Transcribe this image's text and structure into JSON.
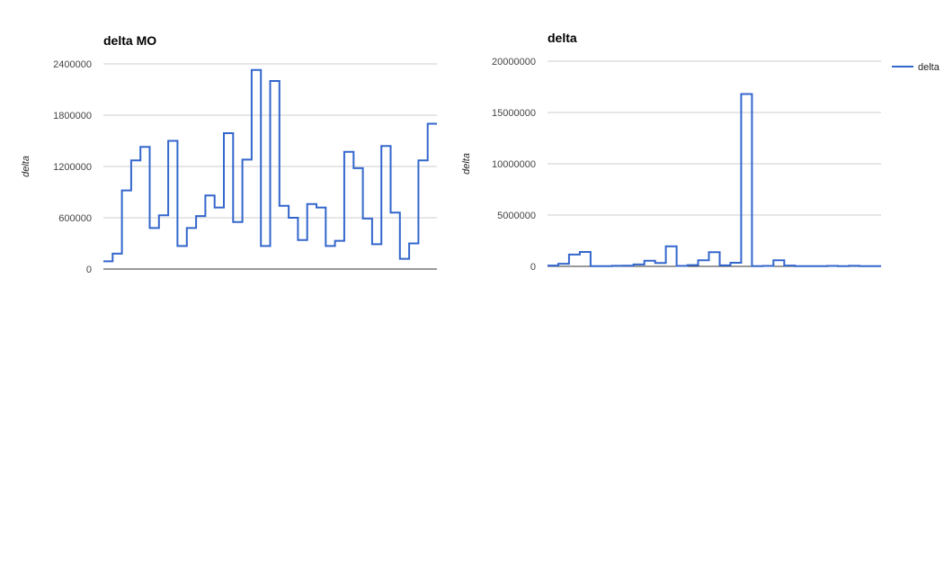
{
  "chart_data": [
    {
      "type": "line",
      "step": true,
      "title": "delta MO",
      "xlabel": "",
      "ylabel": "delta",
      "ylim": [
        0,
        2400000
      ],
      "yticks": [
        0,
        600000,
        1200000,
        1800000,
        2400000
      ],
      "ytick_labels": [
        "0",
        "600000",
        "1200000",
        "1800000",
        "2400000"
      ],
      "grid": true,
      "legend": "none",
      "color": "#3366cc",
      "series": [
        {
          "values": [
            90000,
            180000,
            920000,
            1270000,
            1430000,
            480000,
            630000,
            1500000,
            270000,
            480000,
            620000,
            860000,
            720000,
            1590000,
            550000,
            1280000,
            2330000,
            270000,
            2200000,
            740000,
            600000,
            340000,
            760000,
            720000,
            270000,
            330000,
            1370000,
            1180000,
            590000,
            290000,
            1440000,
            660000,
            120000,
            300000,
            1270000,
            1700000
          ]
        }
      ]
    },
    {
      "type": "line",
      "step": true,
      "title": "delta",
      "xlabel": "",
      "ylabel": "delta",
      "ylim": [
        0,
        20000000
      ],
      "yticks": [
        0,
        5000000,
        10000000,
        15000000,
        20000000
      ],
      "ytick_labels": [
        "0",
        "5000000",
        "10000000",
        "15000000",
        "20000000"
      ],
      "grid": true,
      "legend": "right",
      "color": "#3366cc",
      "series": [
        {
          "name": "delta",
          "values": [
            80000,
            250000,
            1150000,
            1400000,
            20000,
            30000,
            50000,
            70000,
            180000,
            550000,
            330000,
            1950000,
            40000,
            120000,
            600000,
            1380000,
            100000,
            350000,
            16800000,
            20000,
            40000,
            600000,
            80000,
            20000,
            20000,
            20000,
            40000,
            20000,
            50000,
            20000,
            20000
          ]
        }
      ]
    }
  ]
}
